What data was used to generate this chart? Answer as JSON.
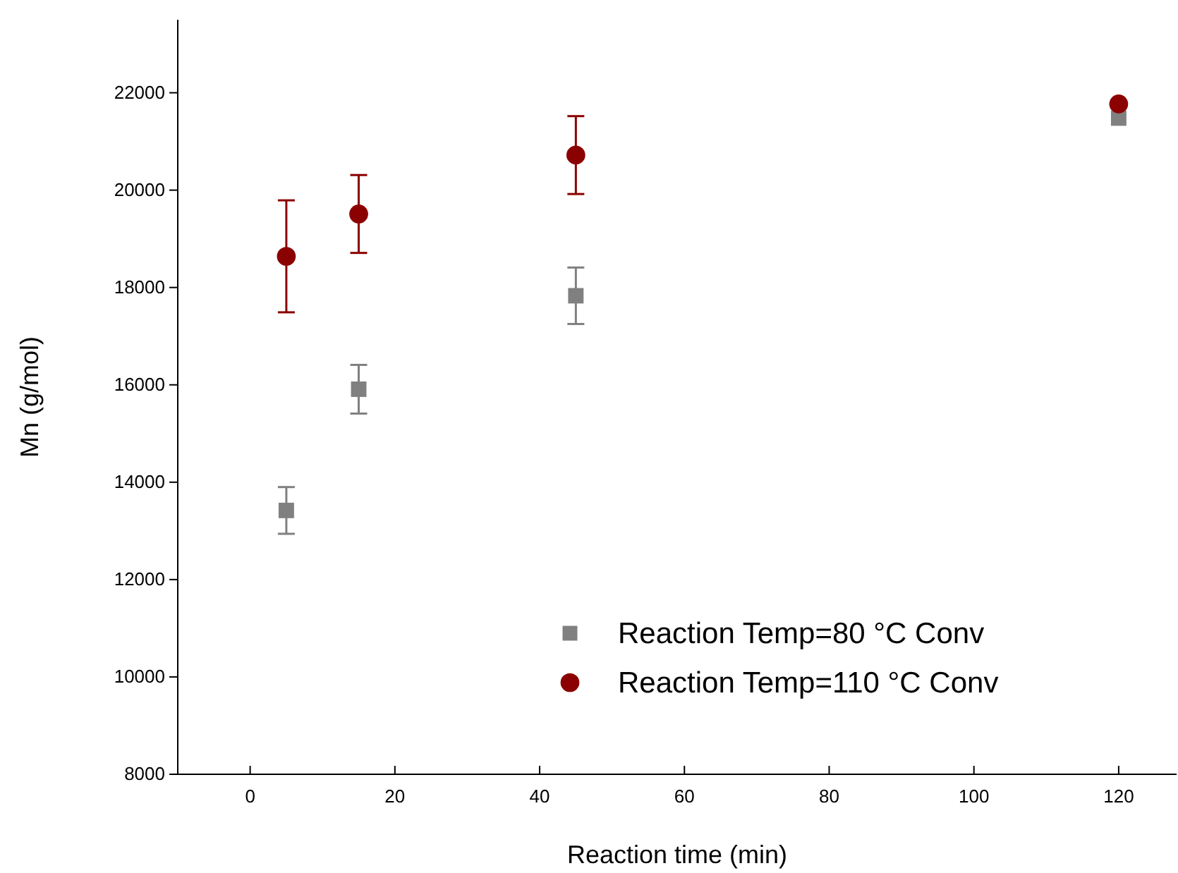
{
  "chart_data": {
    "type": "scatter",
    "xlabel": "Reaction time (min)",
    "ylabel": "Mn (g/mol)",
    "x": [
      5,
      15,
      45,
      120
    ],
    "xlim": [
      -10,
      128
    ],
    "xticks": [
      0,
      20,
      40,
      60,
      80,
      100,
      120
    ],
    "ylim": [
      8000,
      23500
    ],
    "yticks": [
      8000,
      10000,
      12000,
      14000,
      16000,
      18000,
      20000,
      22000
    ],
    "grid": false,
    "legend": "bottom right",
    "series": [
      {
        "name": "Reaction Temp=80 °C Conv",
        "color": "#808080",
        "marker": "square",
        "values": [
          13420,
          15910,
          17830,
          21480
        ],
        "errors": [
          480,
          500,
          580,
          null
        ]
      },
      {
        "name": "Reaction Temp=110 °C Conv",
        "color": "#8b0000",
        "marker": "circle",
        "values": [
          18640,
          19510,
          20720,
          21770
        ],
        "errors": [
          1150,
          800,
          800,
          null
        ]
      }
    ]
  }
}
